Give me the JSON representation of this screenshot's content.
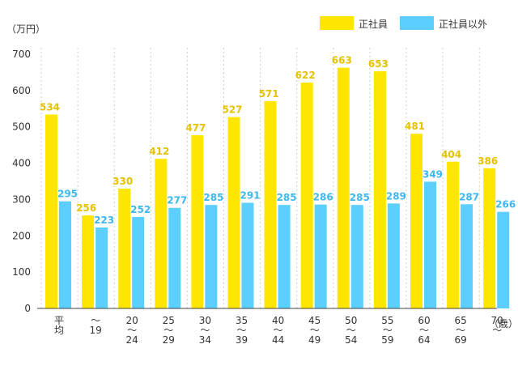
{
  "chart_data": {
    "type": "bar",
    "y_unit": "（万円）",
    "x_unit": "（歳）",
    "ylim": [
      0,
      700
    ],
    "yticks": [
      0,
      100,
      200,
      300,
      400,
      500,
      600,
      700
    ],
    "grid": "vertical-dashed",
    "legend_position": "top-right",
    "categories": [
      {
        "top": "平",
        "bottom": "均"
      },
      {
        "top": "～",
        "bottom": "19"
      },
      {
        "top": "20",
        "mid": "～",
        "bottom": "24"
      },
      {
        "top": "25",
        "mid": "～",
        "bottom": "29"
      },
      {
        "top": "30",
        "mid": "～",
        "bottom": "34"
      },
      {
        "top": "35",
        "mid": "～",
        "bottom": "39"
      },
      {
        "top": "40",
        "mid": "～",
        "bottom": "44"
      },
      {
        "top": "45",
        "mid": "～",
        "bottom": "49"
      },
      {
        "top": "50",
        "mid": "～",
        "bottom": "54"
      },
      {
        "top": "55",
        "mid": "～",
        "bottom": "59"
      },
      {
        "top": "60",
        "mid": "～",
        "bottom": "64"
      },
      {
        "top": "65",
        "mid": "～",
        "bottom": "69"
      },
      {
        "top": "70",
        "mid": "～"
      }
    ],
    "series": [
      {
        "name": "正社員",
        "color": "#ffe600",
        "label_color": "#e6c200",
        "values": [
          534,
          256,
          330,
          412,
          477,
          527,
          571,
          622,
          663,
          653,
          481,
          404,
          386
        ]
      },
      {
        "name": "正社員以外",
        "color": "#5ccfff",
        "label_color": "#3db8f0",
        "values": [
          295,
          223,
          252,
          277,
          285,
          291,
          285,
          286,
          285,
          289,
          349,
          287,
          266
        ]
      }
    ]
  }
}
